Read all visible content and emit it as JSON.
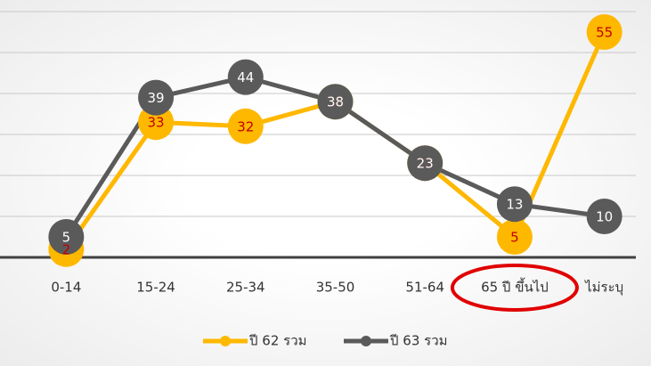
{
  "chart_data": {
    "type": "line",
    "categories": [
      "0-14",
      "15-24",
      "25-34",
      "35-50",
      "51-64",
      "65 ปี ขึ้นไป",
      "ไม่ระบุ"
    ],
    "series": [
      {
        "name": "ปี 62 รวม",
        "color": "#ffb800",
        "label_color": "#c00000",
        "values": [
          2,
          33,
          32,
          38,
          23,
          5,
          55
        ]
      },
      {
        "name": "ปี 63 รวม",
        "color": "#5a5a5a",
        "label_color": "#ffffff",
        "values": [
          5,
          39,
          44,
          38,
          23,
          13,
          10
        ]
      }
    ],
    "ylim": [
      0,
      60
    ],
    "yticks": [
      0,
      10,
      20,
      30,
      40,
      50,
      60
    ],
    "grid": true,
    "legend": "bottom"
  }
}
